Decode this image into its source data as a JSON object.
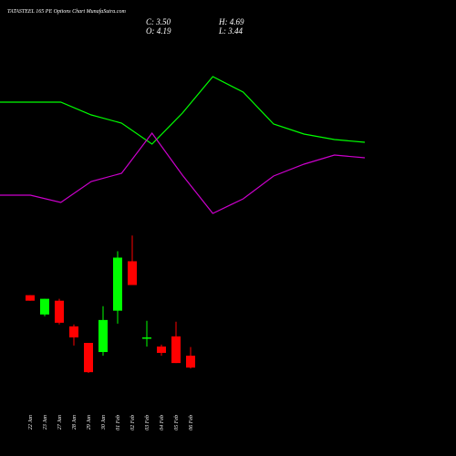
{
  "chart_data": [
    {
      "type": "candlestick",
      "title": "TATASTEEL 165 PE Options  Chart MunafaSutra.com",
      "ohlc_labels": [
        "C: 3.50",
        "H: 4.69",
        "O: 4.19",
        "L: 3.44"
      ],
      "categories": [
        "22 Jan",
        "23 Jan",
        "27 Jan",
        "28 Jan",
        "29 Jan",
        "30 Jan",
        "01 Feb",
        "02 Feb",
        "03 Feb",
        "04 Feb",
        "05 Feb",
        "06 Feb"
      ],
      "open": [
        7.7,
        6.58,
        7.38,
        5.89,
        4.93,
        4.4,
        6.8,
        9.67,
        5.2,
        4.72,
        5.31,
        4.19
      ],
      "high": [
        7.7,
        7.49,
        7.49,
        6.0,
        4.93,
        7.06,
        10.25,
        11.16,
        6.21,
        4.83,
        6.16,
        4.69
      ],
      "low": [
        7.38,
        6.48,
        6.0,
        4.78,
        3.18,
        4.19,
        6.05,
        8.29,
        4.72,
        4.19,
        3.76,
        3.44
      ],
      "close": [
        7.38,
        7.49,
        6.1,
        5.25,
        3.23,
        6.26,
        9.88,
        8.29,
        5.25,
        4.35,
        3.76,
        3.5
      ],
      "up_color": "#00ff00",
      "down_color": "#ff0000",
      "ylim": [
        2.6,
        11.6
      ]
    },
    {
      "type": "line",
      "series": [
        {
          "color": "#00ff00",
          "values": [
            74,
            74,
            74,
            67,
            62.5,
            51,
            68,
            88,
            79.5,
            62,
            56.5,
            53.5,
            52
          ]
        },
        {
          "color": "#cc00cc",
          "values": [
            23,
            23,
            19,
            30.5,
            35,
            57,
            34,
            13,
            21,
            33.5,
            40,
            45,
            43.5
          ]
        }
      ],
      "ylim": [
        0,
        100
      ]
    }
  ]
}
